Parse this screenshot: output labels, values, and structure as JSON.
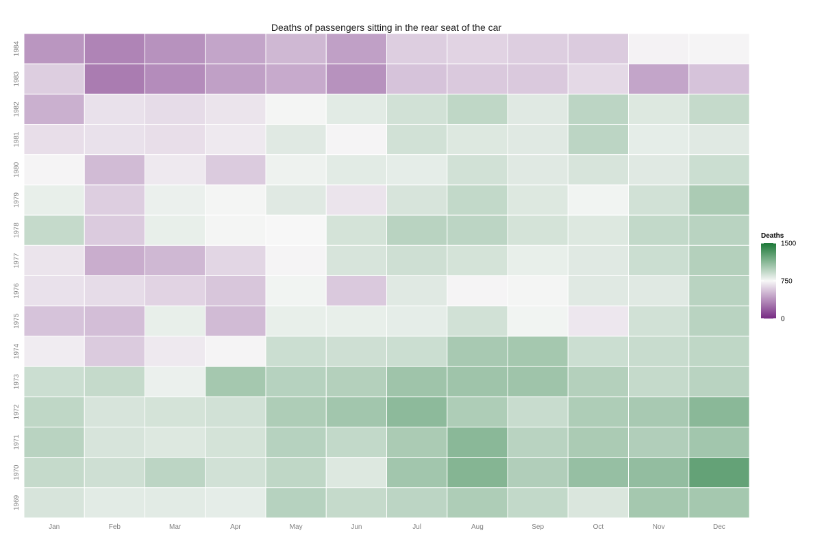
{
  "chart_data": {
    "type": "heatmap",
    "title": "Deaths of passengers sitting in the rear seat of the car",
    "xlabel": "",
    "ylabel": "",
    "x_categories": [
      "Jan",
      "Feb",
      "Mar",
      "Apr",
      "May",
      "Jun",
      "Jul",
      "Aug",
      "Sep",
      "Oct",
      "Nov",
      "Dec"
    ],
    "y_categories": [
      "1984",
      "1983",
      "1982",
      "1981",
      "1980",
      "1979",
      "1978",
      "1977",
      "1976",
      "1975",
      "1974",
      "1973",
      "1972",
      "1971",
      "1970",
      "1969"
    ],
    "values": [
      [
        395,
        330,
        380,
        450,
        520,
        430,
        600,
        620,
        600,
        590,
        730,
        740
      ],
      [
        600,
        300,
        360,
        430,
        470,
        380,
        560,
        580,
        580,
        640,
        450,
        560
      ],
      [
        490,
        670,
        650,
        680,
        760,
        820,
        880,
        940,
        830,
        950,
        840,
        920
      ],
      [
        660,
        670,
        660,
        700,
        830,
        740,
        880,
        840,
        830,
        950,
        810,
        830
      ],
      [
        740,
        530,
        700,
        590,
        780,
        820,
        810,
        880,
        830,
        860,
        830,
        900
      ],
      [
        800,
        600,
        790,
        760,
        830,
        680,
        860,
        930,
        840,
        770,
        880,
        1010
      ],
      [
        920,
        590,
        800,
        760,
        750,
        870,
        960,
        950,
        870,
        840,
        930,
        960
      ],
      [
        680,
        480,
        520,
        630,
        740,
        860,
        890,
        870,
        800,
        830,
        900,
        980
      ],
      [
        670,
        650,
        620,
        570,
        770,
        580,
        830,
        740,
        760,
        830,
        830,
        960
      ],
      [
        560,
        540,
        800,
        530,
        800,
        800,
        810,
        880,
        770,
        690,
        880,
        960
      ],
      [
        710,
        590,
        700,
        740,
        900,
        890,
        900,
        1020,
        1030,
        900,
        910,
        940
      ],
      [
        900,
        920,
        790,
        1030,
        970,
        980,
        1050,
        1050,
        1050,
        980,
        920,
        960
      ],
      [
        940,
        860,
        870,
        880,
        1000,
        1040,
        1110,
        1000,
        910,
        1000,
        1020,
        1120
      ],
      [
        960,
        860,
        840,
        870,
        970,
        930,
        1010,
        1120,
        960,
        1010,
        990,
        1040
      ],
      [
        920,
        890,
        950,
        880,
        940,
        840,
        1040,
        1140,
        990,
        1080,
        1090,
        1250
      ],
      [
        860,
        820,
        820,
        810,
        970,
        920,
        950,
        1000,
        930,
        850,
        1030,
        1030
      ]
    ],
    "legend": {
      "title": "Deaths",
      "ticks": [
        1500,
        750,
        0
      ],
      "position": "right",
      "low_color": "#762a83",
      "mid_color": "#f7f7f7",
      "high_color": "#1b7837",
      "min": 0,
      "mid": 750,
      "max": 1500
    },
    "grid": false
  }
}
